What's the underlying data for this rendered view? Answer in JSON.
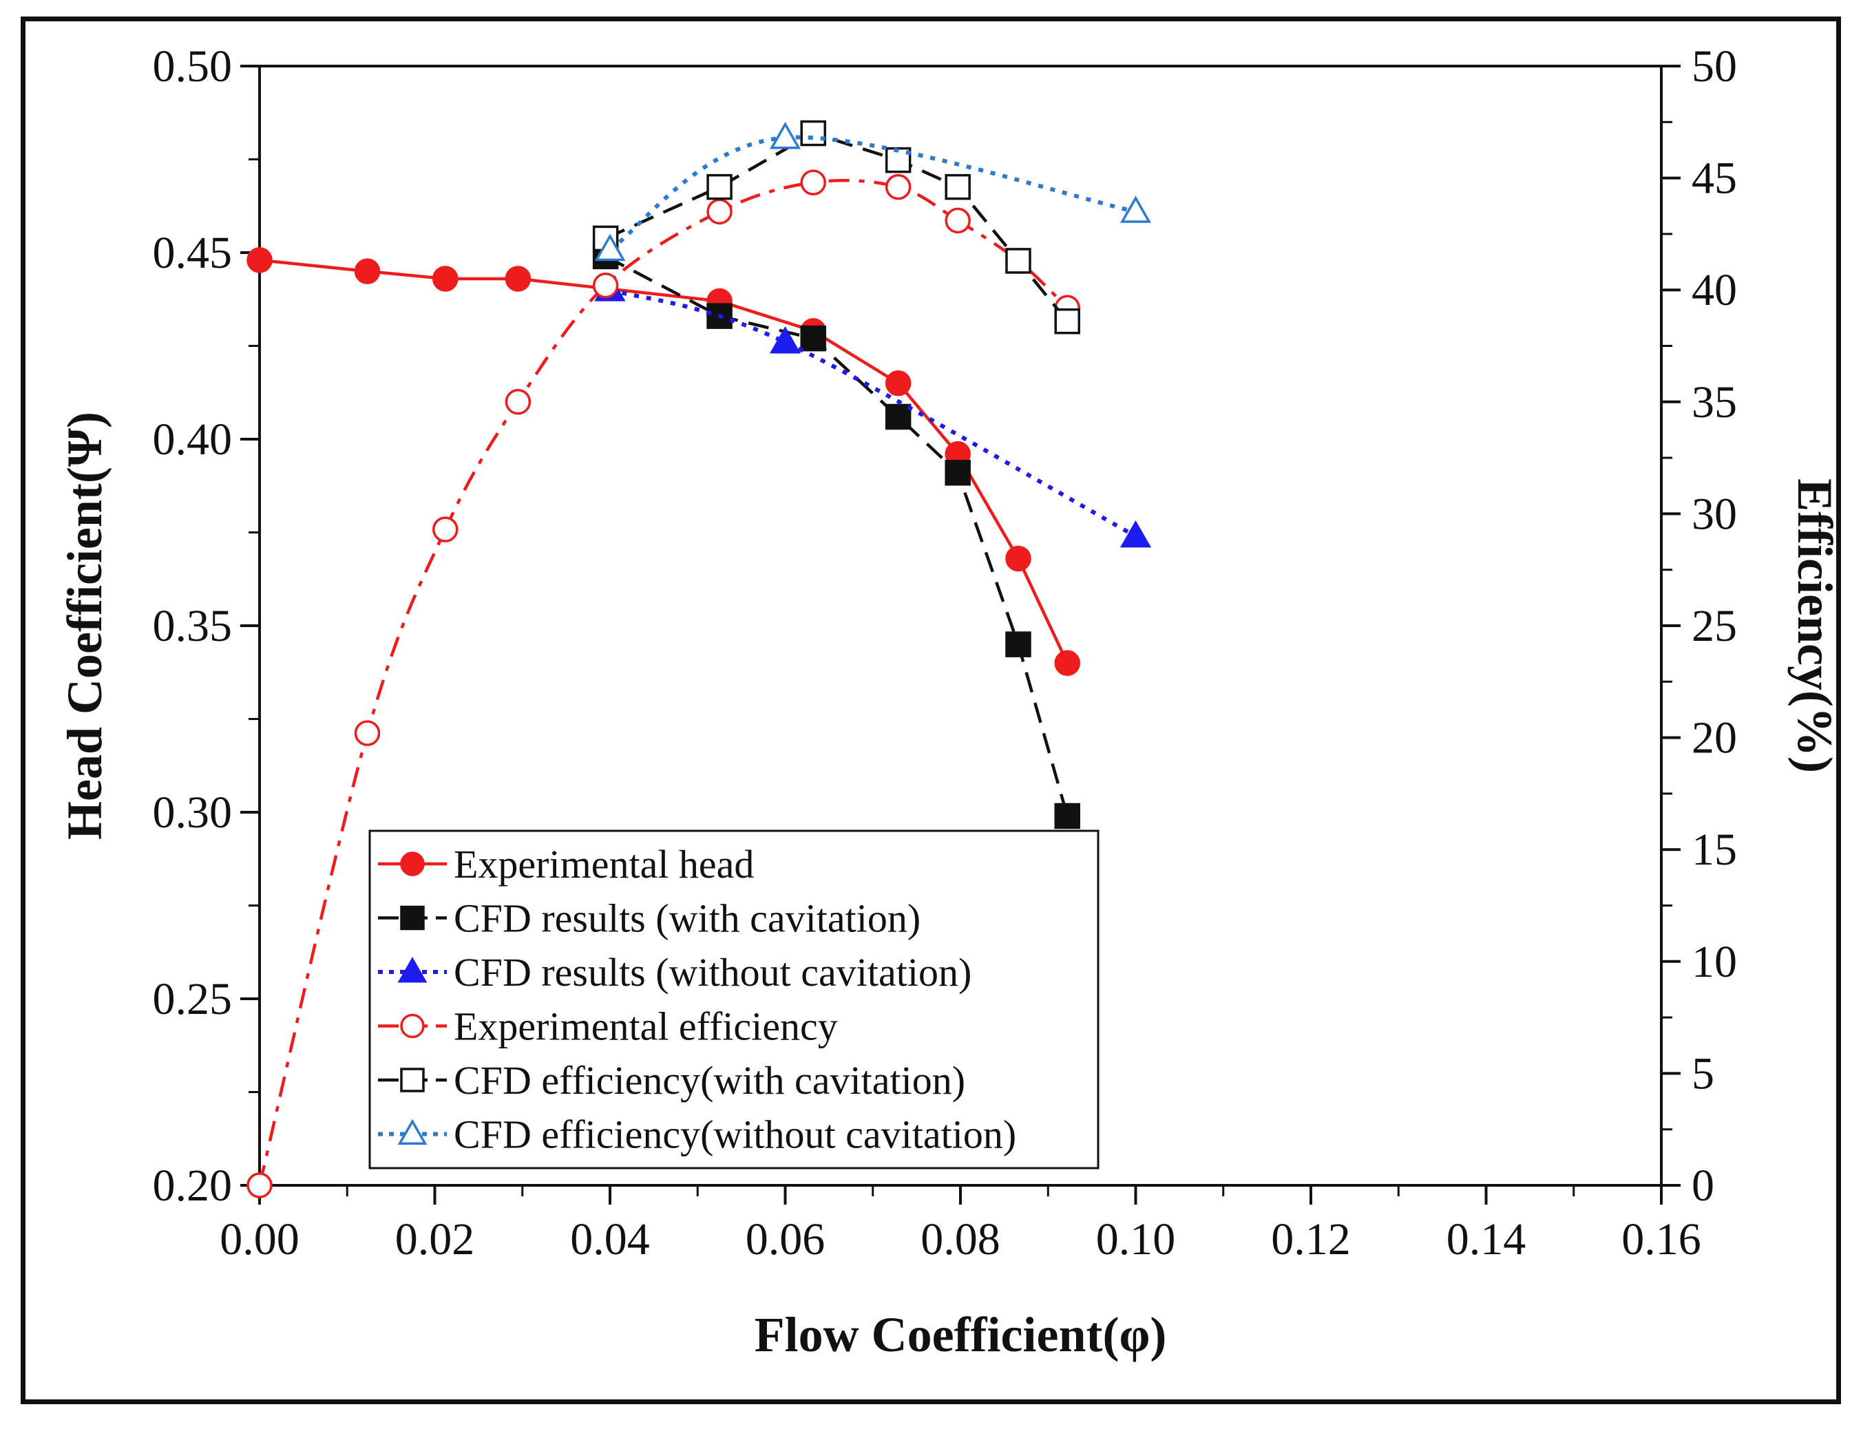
{
  "chart_data": {
    "type": "line",
    "title": "",
    "xlabel": "Flow Coefficient(φ)",
    "ylabel_left": "Head Coefficient(Ψ)",
    "ylabel_right": "Efficiency(%)",
    "xlim": [
      0,
      0.16
    ],
    "ylim_left": [
      0.2,
      0.5
    ],
    "ylim_right": [
      0,
      50
    ],
    "x_ticks": [
      "0.00",
      "0.02",
      "0.04",
      "0.06",
      "0.08",
      "0.10",
      "0.12",
      "0.14",
      "0.16"
    ],
    "y_left_ticks": [
      "0.20",
      "0.25",
      "0.30",
      "0.35",
      "0.40",
      "0.45",
      "0.50"
    ],
    "y_right_ticks": [
      "0",
      "5",
      "10",
      "15",
      "20",
      "25",
      "30",
      "35",
      "40",
      "45",
      "50"
    ],
    "grid": false,
    "legend_position": "bottom-left",
    "series": [
      {
        "name": "Experimental head",
        "axis": "left",
        "color": "#ee1c1c",
        "marker": "circle-filled",
        "line": "solid",
        "x": [
          0.0,
          0.0123,
          0.0212,
          0.0295,
          0.0525,
          0.0632,
          0.0729,
          0.0797,
          0.0866,
          0.0922
        ],
        "y": [
          0.448,
          0.445,
          0.443,
          0.443,
          0.437,
          0.429,
          0.415,
          0.396,
          0.368,
          0.34
        ]
      },
      {
        "name": "CFD results (with cavitation)",
        "axis": "left",
        "color": "#111111",
        "marker": "square-filled",
        "line": "dash",
        "x": [
          0.0395,
          0.0525,
          0.0632,
          0.0729,
          0.0797,
          0.0866,
          0.0922
        ],
        "y": [
          0.449,
          0.433,
          0.427,
          0.406,
          0.391,
          0.345,
          0.299
        ]
      },
      {
        "name": "CFD results (without cavitation)",
        "axis": "left",
        "color": "#1c1cee",
        "marker": "triangle-filled",
        "line": "dot",
        "x": [
          0.04,
          0.06,
          0.1
        ],
        "y": [
          0.44,
          0.426,
          0.374
        ]
      },
      {
        "name": "Experimental efficiency",
        "axis": "right",
        "color": "#ee1c1c",
        "marker": "circle-open",
        "line": "dashdot",
        "x": [
          0.0,
          0.0123,
          0.0212,
          0.0295,
          0.0395,
          0.0525,
          0.0632,
          0.0729,
          0.0797,
          0.0866,
          0.0922
        ],
        "y": [
          0.0,
          20.2,
          29.3,
          35.0,
          40.2,
          43.5,
          44.8,
          44.6,
          43.1,
          41.3,
          39.2
        ]
      },
      {
        "name": "CFD efficiency(with cavitation)",
        "axis": "right",
        "color": "#111111",
        "marker": "square-open",
        "line": "dash",
        "x": [
          0.0395,
          0.0525,
          0.0632,
          0.0729,
          0.0797,
          0.0866,
          0.0922
        ],
        "y": [
          42.3,
          44.6,
          47.0,
          45.8,
          44.6,
          41.3,
          38.6
        ]
      },
      {
        "name": "CFD efficiency(without cavitation)",
        "axis": "right",
        "color": "#2b7bd0",
        "marker": "triangle-open",
        "line": "dot",
        "x": [
          0.04,
          0.06,
          0.1
        ],
        "y": [
          41.8,
          46.8,
          43.5
        ]
      }
    ]
  }
}
